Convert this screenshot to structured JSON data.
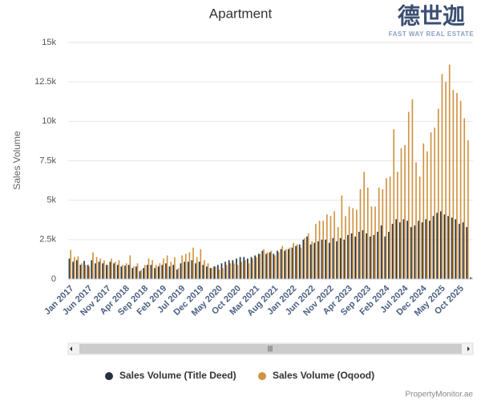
{
  "chart_data": {
    "type": "bar",
    "title": "Apartment",
    "ylabel": "Sales Volume",
    "categories": [
      "Jan 2017",
      null,
      null,
      null,
      null,
      "Jun 2017",
      null,
      null,
      null,
      null,
      "Nov 2017",
      null,
      null,
      null,
      null,
      "Apr 2018",
      null,
      null,
      null,
      null,
      "Sep 2018",
      null,
      null,
      null,
      null,
      "Feb 2019",
      null,
      null,
      null,
      null,
      "Jul 2019",
      null,
      null,
      null,
      null,
      "Dec 2019",
      null,
      null,
      null,
      null,
      "May 2020",
      null,
      null,
      null,
      null,
      "Oct 2020",
      null,
      null,
      null,
      null,
      "Mar 2021",
      null,
      null,
      null,
      null,
      "Aug 2021",
      null,
      null,
      null,
      null,
      "Jan 2022",
      null,
      null,
      null,
      null,
      "Jun 2022",
      null,
      null,
      null,
      null,
      "Nov 2022",
      null,
      null,
      null,
      null,
      "Apr 2023",
      null,
      null,
      null,
      null,
      "Sep 2023",
      null,
      null,
      null,
      null,
      "Feb 2024",
      null,
      null,
      null,
      null,
      "Jul 2024",
      null,
      null,
      null,
      null,
      "Dec 2024",
      null,
      null,
      null,
      null,
      "May 2025",
      null,
      null,
      null,
      null,
      "Oct 2025",
      null,
      null,
      null
    ],
    "series": [
      {
        "name": "Sales Volume (Title Deed)",
        "color": "#27323f",
        "values": [
          1300,
          1100,
          1200,
          900,
          1150,
          900,
          1200,
          1000,
          1100,
          1000,
          900,
          1100,
          1000,
          900,
          800,
          850,
          900,
          700,
          800,
          500,
          700,
          900,
          900,
          700,
          800,
          900,
          1000,
          800,
          900,
          600,
          1000,
          1100,
          1100,
          1200,
          1000,
          1100,
          900,
          800,
          700,
          800,
          900,
          1000,
          1100,
          1200,
          1200,
          1300,
          1400,
          1400,
          1300,
          1400,
          1500,
          1600,
          1800,
          1600,
          1700,
          1600,
          1800,
          1900,
          1800,
          1900,
          2000,
          2100,
          2200,
          2500,
          2700,
          2200,
          2300,
          2400,
          2500,
          2500,
          2300,
          2600,
          2400,
          2600,
          2500,
          2800,
          2900,
          2700,
          3000,
          3100,
          2900,
          2700,
          2800,
          3000,
          3400,
          2700,
          3000,
          3500,
          3800,
          3600,
          3800,
          3700,
          3300,
          3400,
          3700,
          3600,
          3800,
          3700,
          4000,
          4200,
          4300,
          4100,
          4000,
          3900,
          3800,
          3500,
          3600,
          3300,
          100
        ]
      },
      {
        "name": "Sales Volume (Oqood)",
        "color": "#cf9442",
        "values": [
          1850,
          1400,
          1450,
          1000,
          900,
          800,
          1700,
          1400,
          1300,
          1200,
          900,
          1300,
          1100,
          1200,
          900,
          1000,
          1500,
          800,
          1000,
          600,
          900,
          1300,
          1200,
          900,
          1000,
          1300,
          1500,
          1100,
          1400,
          700,
          1500,
          1600,
          1700,
          2000,
          1400,
          1900,
          1200,
          1000,
          700,
          800,
          600,
          700,
          900,
          1000,
          1000,
          900,
          1100,
          1200,
          1000,
          1300,
          1400,
          1600,
          1900,
          1700,
          1800,
          1500,
          1700,
          2100,
          1900,
          2000,
          2300,
          2200,
          2000,
          2600,
          2900,
          2400,
          3500,
          3700,
          3700,
          4100,
          4000,
          4300,
          3300,
          5300,
          4000,
          4600,
          4500,
          4400,
          5700,
          6800,
          5800,
          4600,
          4600,
          5800,
          5700,
          6400,
          6500,
          9500,
          6800,
          8300,
          8500,
          10600,
          11400,
          7400,
          6500,
          8600,
          8100,
          9300,
          9600,
          10800,
          13000,
          12500,
          13600,
          12000,
          11800,
          11300,
          10200,
          8800,
          100
        ]
      }
    ],
    "ylim": [
      0,
      15000
    ],
    "yticks": [
      0,
      {
        "value": 2500,
        "label": "2.5k"
      },
      {
        "value": 5000,
        "label": "5k"
      },
      {
        "value": 7500,
        "label": "7.5k"
      },
      {
        "value": 10000,
        "label": "10k"
      },
      {
        "value": 12500,
        "label": "12.5k"
      },
      {
        "value": 15000,
        "label": "15k"
      }
    ],
    "grid": true,
    "legend": "bottom"
  },
  "brand": {
    "name": "德世迦",
    "tagline": "FAST WAY REAL ESTATE"
  },
  "source": "PropertyMonitor.ae"
}
